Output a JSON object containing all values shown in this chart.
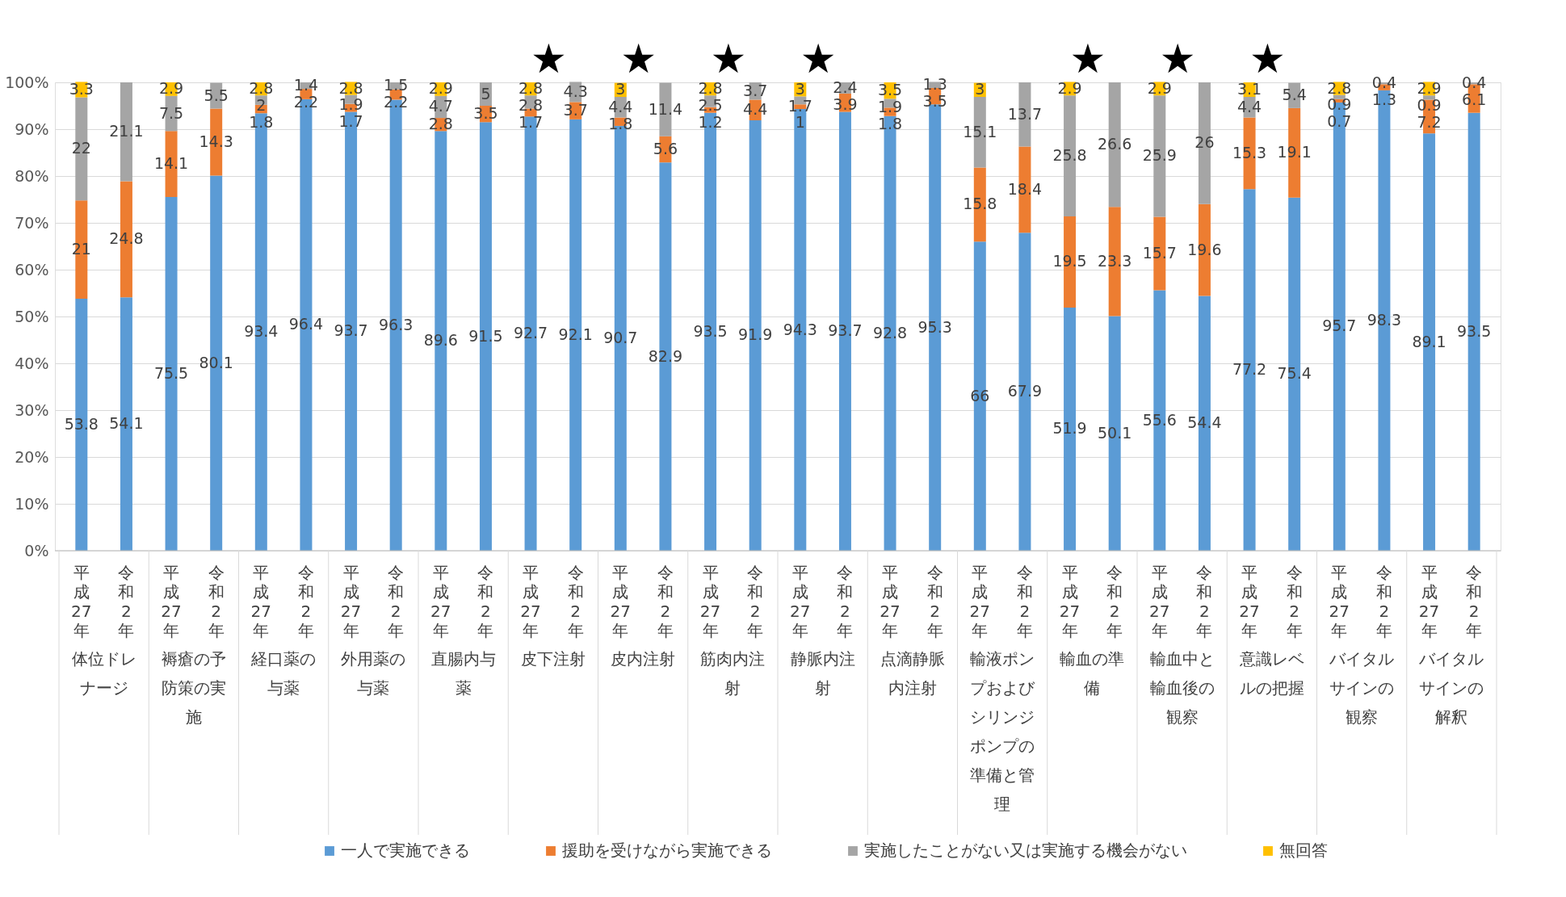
{
  "chart_data": {
    "type": "bar",
    "stacked": true,
    "grid": "y",
    "legend": "bottom",
    "data_labels": true,
    "categories": [
      "平成27年",
      "令和2年",
      "平成27年",
      "令和2年",
      "平成27年",
      "令和2年",
      "平成27年",
      "令和2年",
      "平成27年",
      "令和2年",
      "平成27年",
      "令和2年",
      "平成27年",
      "令和2年",
      "平成27年",
      "令和2年",
      "平成27年",
      "令和2年",
      "平成27年",
      "令和2年",
      "平成27年",
      "令和2年",
      "平成27年",
      "令和2年",
      "平成27年",
      "令和2年",
      "平成27年",
      "令和2年",
      "平成27年",
      "令和2年",
      "平成27年",
      "令和2年"
    ],
    "ylim": [
      0,
      100
    ],
    "yticks": [
      {
        "value": 0,
        "label": "0%"
      },
      {
        "value": 10,
        "label": "10%"
      },
      {
        "value": 20,
        "label": "20%"
      },
      {
        "value": 30,
        "label": "30%"
      },
      {
        "value": 40,
        "label": "40%"
      },
      {
        "value": 50,
        "label": "50%"
      },
      {
        "value": 60,
        "label": "60%"
      },
      {
        "value": 70,
        "label": "70%"
      },
      {
        "value": 80,
        "label": "80%"
      },
      {
        "value": 90,
        "label": "90%"
      },
      {
        "value": 100,
        "label": "100%"
      }
    ],
    "series": [
      {
        "name": "一人で実施できる",
        "color": "#5b9bd5",
        "values": [
          53.8,
          54.1,
          75.5,
          80.1,
          93.4,
          96.4,
          93.7,
          96.3,
          89.6,
          91.5,
          92.7,
          92.1,
          90.7,
          82.9,
          93.5,
          91.9,
          94.3,
          93.7,
          92.8,
          95.3,
          66,
          67.9,
          51.9,
          50.1,
          55.6,
          54.4,
          77.2,
          75.4,
          95.7,
          98.3,
          89.1,
          93.5
        ]
      },
      {
        "name": "援助を受けながら実施できる",
        "color": "#ed7d31",
        "values": [
          21,
          24.8,
          14.1,
          14.3,
          1.8,
          2.2,
          1.7,
          2.2,
          2.8,
          3.5,
          1.7,
          3.7,
          1.8,
          5.6,
          1.2,
          4.4,
          1,
          3.9,
          1.8,
          3.5,
          15.8,
          18.4,
          19.5,
          23.3,
          15.7,
          19.6,
          15.3,
          19.1,
          0.7,
          1.3,
          7.2,
          6.1
        ]
      },
      {
        "name": "実施したことがない又は実施する機会がない",
        "color": "#a5a5a5",
        "values": [
          22,
          21.1,
          7.5,
          5.5,
          2,
          1.4,
          1.9,
          1.5,
          4.7,
          5,
          2.8,
          4.3,
          4.4,
          11.4,
          2.5,
          3.7,
          1.7,
          2.4,
          1.9,
          1.3,
          15.1,
          13.7,
          25.8,
          26.6,
          25.9,
          26,
          4.4,
          5.4,
          0.9,
          0.4,
          0.9,
          0.4
        ]
      },
      {
        "name": "無回答",
        "color": "#ffc000",
        "values": [
          3.3,
          null,
          2.9,
          null,
          2.8,
          null,
          2.8,
          null,
          2.9,
          null,
          2.8,
          null,
          3,
          null,
          2.8,
          null,
          3,
          null,
          3.5,
          null,
          3,
          null,
          2.9,
          null,
          2.9,
          null,
          3.1,
          null,
          2.8,
          null,
          2.9,
          null
        ]
      }
    ],
    "annotations": [
      "体位ドレナージ",
      "褥瘡の予防策の実施",
      "経口薬の与薬",
      "外用薬の与薬",
      "直腸内与薬",
      "皮下注射",
      "皮内注射",
      "筋肉内注射",
      "静脈内注射",
      "点滴静脈内注射",
      "輸液ポンプおよびシリンジポンプの準備と管理",
      "輸血の準備",
      "輸血中と輸血後の観察",
      "意識レベルの把握",
      "バイタルサインの観察",
      "バイタルサインの解釈",
      "★",
      "★",
      "★",
      "★",
      "★",
      "★",
      "★"
    ]
  }
}
